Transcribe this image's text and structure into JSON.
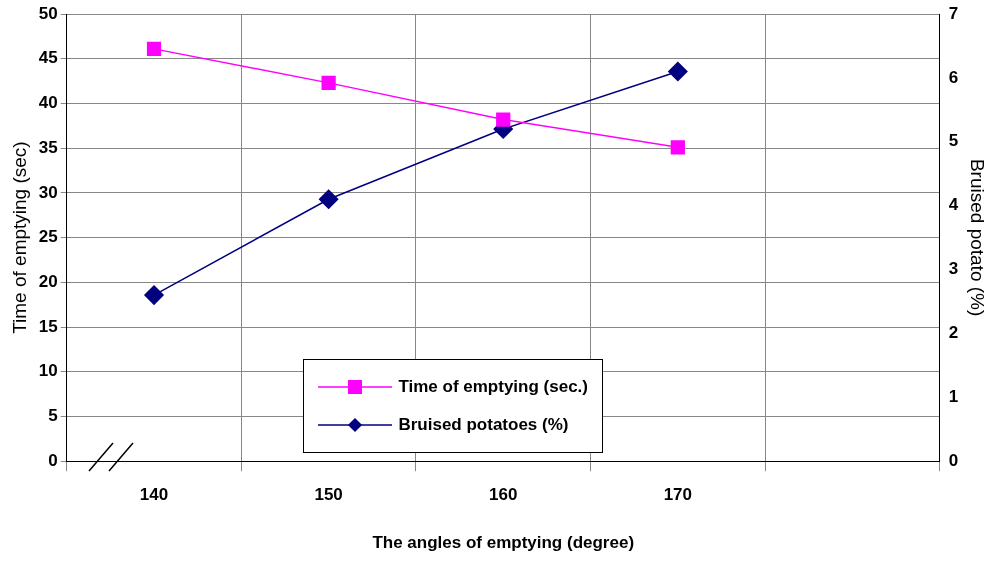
{
  "chart_data": {
    "type": "line",
    "xlabel": "The angles of emptying (degree)",
    "ylabel": "Time of emptying (sec)",
    "y2label": "Bruised potato (%)",
    "categories": [
      "140",
      "150",
      "160",
      "170",
      null
    ],
    "series": [
      {
        "name": "Time of emptying (sec.)",
        "color": "#ff00ff",
        "marker": "square",
        "values": [
          46.1,
          42.3,
          38.2,
          35.1,
          null
        ]
      },
      {
        "name": "Bruised potatoes (%)",
        "color": "#000080",
        "marker": "diamond",
        "axis": "y2",
        "values": [
          2.6,
          4.1,
          5.2,
          6.1,
          null
        ]
      }
    ],
    "ylim": [
      0,
      50
    ],
    "yticks": [
      0,
      5,
      10,
      15,
      20,
      25,
      30,
      35,
      40,
      45,
      50
    ],
    "y2lim": [
      0,
      7
    ],
    "y2ticks": [
      0,
      1,
      2,
      3,
      4,
      5,
      6,
      7
    ],
    "grid": true,
    "legend": "bottom",
    "line_style": "solid"
  }
}
